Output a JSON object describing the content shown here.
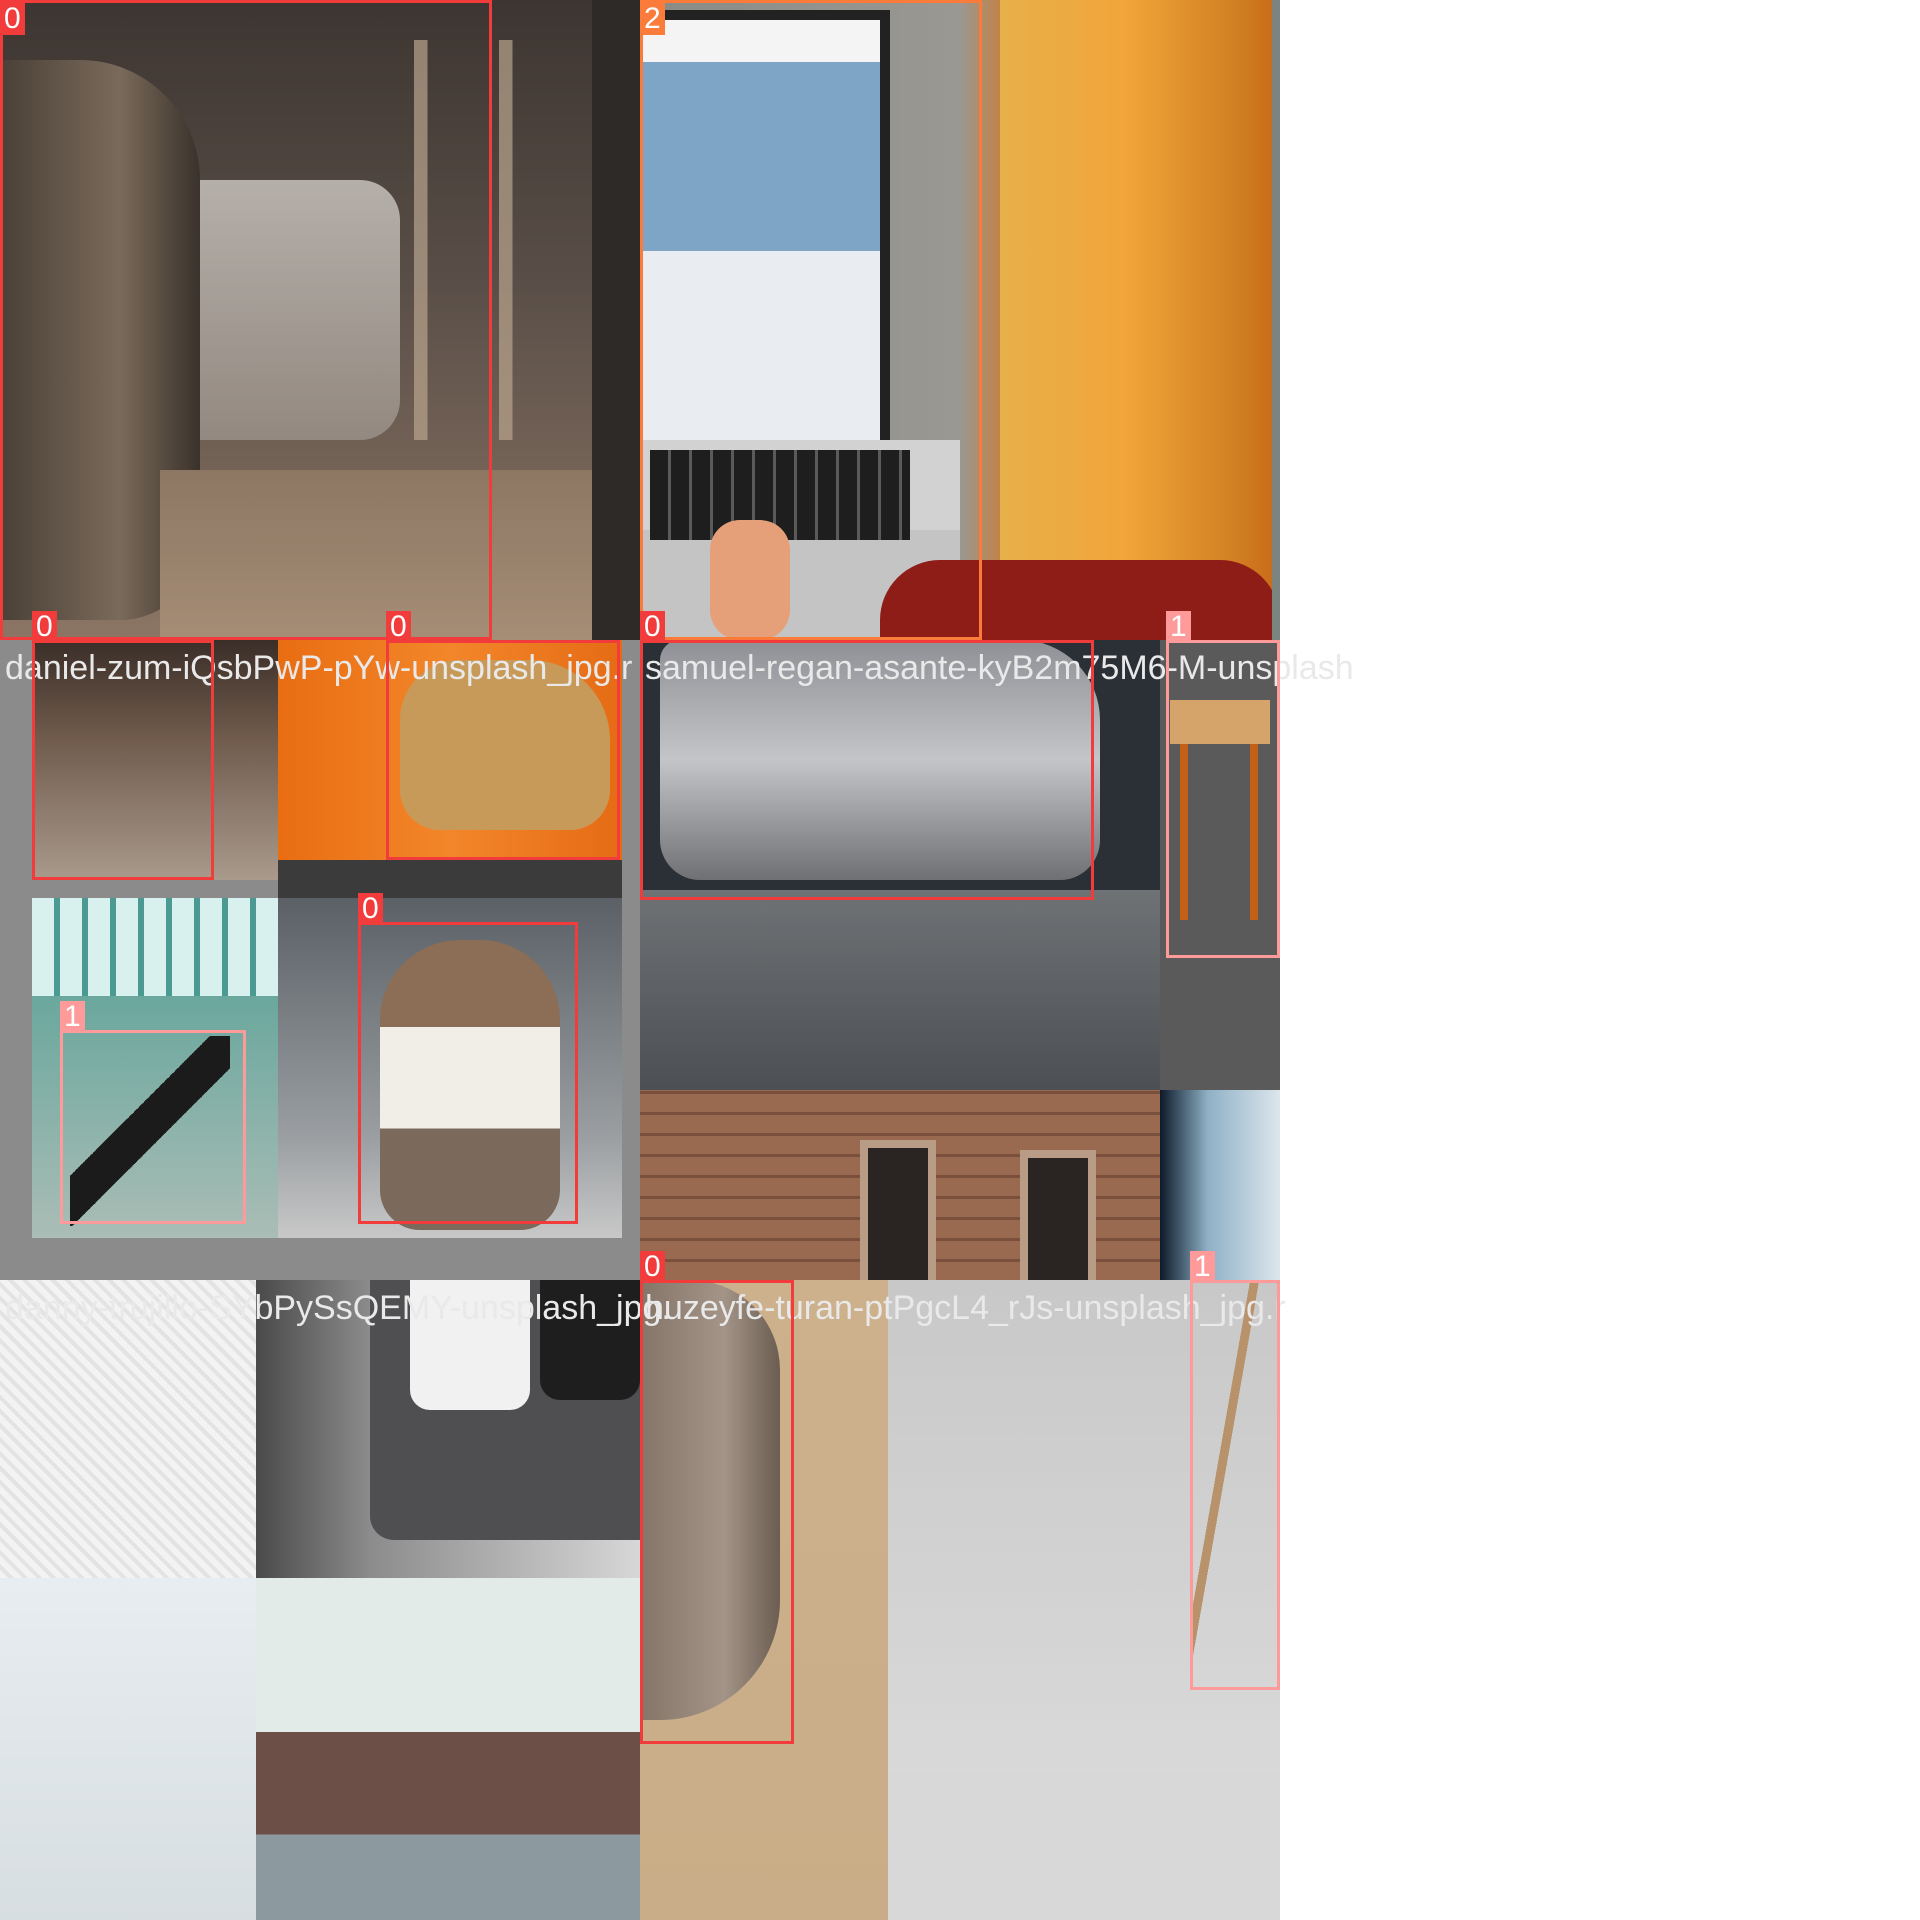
{
  "image": {
    "kind": "object-detection training mosaic",
    "scene": "A grid of stitched photo crops (cats, chairs, a laptop with a web page, walls, phones) overlaid with labelled bounding boxes and source file names.",
    "class_colors": {
      "0": "#f23c3c",
      "1": "#ff9a9a",
      "2": "#fb7b3a"
    }
  },
  "filenames": [
    {
      "text": "daniel-zum-iQsbPwP-pYw-unsplash_jpg.r"
    },
    {
      "text": "samuel-regan-asante-kyB2m75M6-M-unsplash"
    },
    {
      "text": "danny-trujillo-SYbPySsQEMY-unsplash_jpg."
    },
    {
      "text": "huzeyfe-turan-ptPgcL4_rJs-unsplash_jpg.r"
    }
  ],
  "boxes": [
    {
      "label": "0",
      "class_color": "#f23c3c",
      "depicts": "cat (partial, tabby)"
    },
    {
      "label": "2",
      "class_color": "#fb7b3a",
      "depicts": "laptop"
    },
    {
      "label": "0",
      "class_color": "#f23c3c",
      "depicts": "long-haired tabby cat sitting"
    },
    {
      "label": "0",
      "class_color": "#f23c3c",
      "depicts": "ginger cat on orange wall"
    },
    {
      "label": "0",
      "class_color": "#f23c3c",
      "depicts": "grey cat walking on ledge"
    },
    {
      "label": "1",
      "class_color": "#ff9a9a",
      "depicts": "wooden chair"
    },
    {
      "label": "0",
      "class_color": "#f23c3c",
      "depicts": "tabby and white cat sitting"
    },
    {
      "label": "1",
      "class_color": "#ff9a9a",
      "depicts": "black folding chair"
    },
    {
      "label": "0",
      "class_color": "#f23c3c",
      "depicts": "grey cat (partial)"
    },
    {
      "label": "1",
      "class_color": "#ff9a9a",
      "depicts": "bar stool"
    }
  ]
}
